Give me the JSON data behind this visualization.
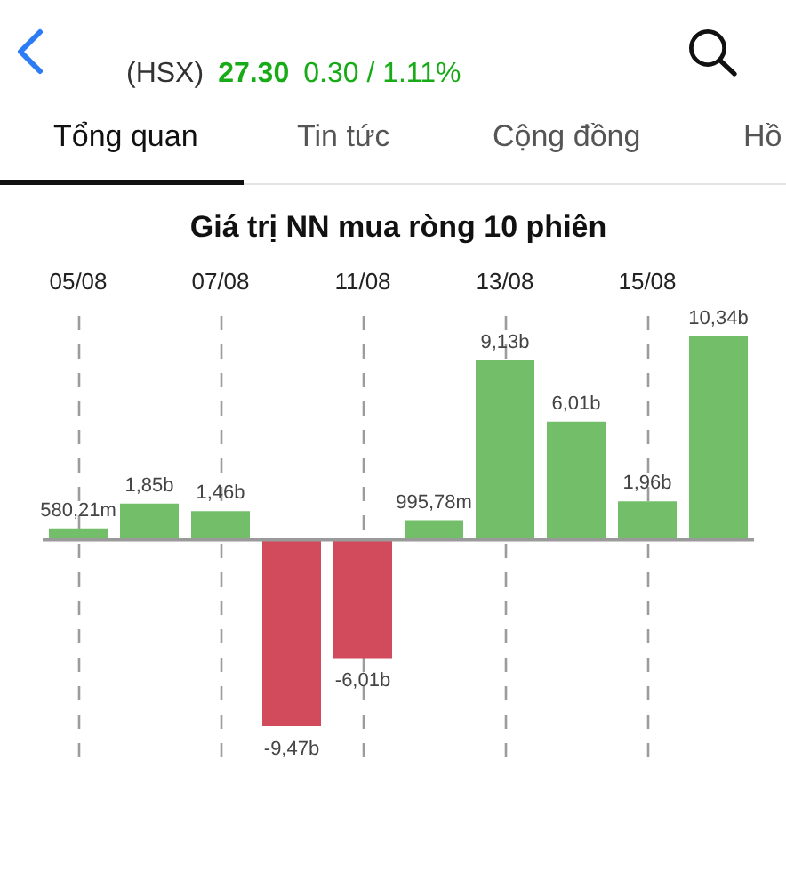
{
  "chart_data": {
    "type": "bar",
    "title": "Giá trị NN mua ròng 10 phiên",
    "categories": [
      "05/08",
      null,
      "07/08",
      null,
      "11/08",
      null,
      "13/08",
      null,
      "15/08",
      null
    ],
    "values": [
      580210000,
      1850000000,
      1460000000,
      -9470000000,
      -6010000000,
      995780000,
      9130000000,
      6010000000,
      1960000000,
      10340000000
    ],
    "colors": [
      "#72be69",
      "#72be69",
      "#72be69",
      "#d24b5c",
      "#d24b5c",
      "#72be69",
      "#72be69",
      "#72be69",
      "#72be69",
      "#72be69"
    ],
    "value_labels": [
      "580,21m",
      "1,85b",
      "1,46b",
      "-9,47b",
      "-6,01b",
      "995,78m",
      "9,13b",
      "6,01b",
      "1,96b",
      "10,34b"
    ],
    "grid": "x",
    "annotations": [
      "(HSX)",
      "27.30",
      "0.30 / 1.11%",
      "Tổng quan",
      "Tin tức",
      "Cộng đồng",
      "Hồ"
    ]
  }
}
